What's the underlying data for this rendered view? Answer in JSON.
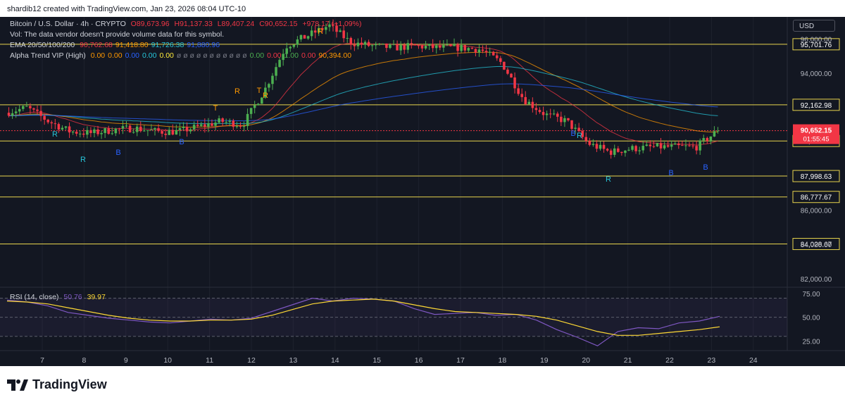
{
  "caption": "shardib12 created with TradingView.com, Jan 23, 2026 08:04 UTC-10",
  "legend": {
    "symbol": "Bitcoin / U.S. Dollar · 4h · CRYPTO",
    "ohlc": {
      "o": "O89,673.96",
      "h": "H91,137.33",
      "l": "L89,407.24",
      "c": "C90,652.15",
      "chg": "+978.17 (+1.09%)"
    },
    "vol": "Vol: The data vendor doesn't provide volume data for this symbol.",
    "ema_label": "EMA 20/50/100/200",
    "ema_values": [
      {
        "text": "90,762.68",
        "color": "#f23645"
      },
      {
        "text": "91,418.80",
        "color": "#ff9800"
      },
      {
        "text": "91,726.38",
        "color": "#26c6da"
      },
      {
        "text": "91,880.96",
        "color": "#2962ff"
      }
    ],
    "alpha_label": "Alpha Trend VIP (High)",
    "alpha_values": [
      {
        "text": "0.00",
        "color": "#ff9800"
      },
      {
        "text": "0.00",
        "color": "#ff9800"
      },
      {
        "text": "0.00",
        "color": "#2962ff"
      },
      {
        "text": "0.00",
        "color": "#26c6da"
      },
      {
        "text": "0.00",
        "color": "#ffeb3b"
      },
      {
        "text": "ø ø ø ø ø ø ø ø ø ø ø",
        "color": "#787b86"
      },
      {
        "text": "0.00",
        "color": "#4caf50"
      },
      {
        "text": "0.00",
        "color": "#f23645"
      },
      {
        "text": "1.00",
        "color": "#4caf50"
      },
      {
        "text": "0.00",
        "color": "#f23645"
      },
      {
        "text": "90,394.00",
        "color": "#ff9800"
      }
    ]
  },
  "currency_button": "USD",
  "rsi_label": "RSI (14, close)",
  "rsi_value": "50.76",
  "rsi_ma_value": "39.97",
  "footer_brand": "TradingView",
  "colors": {
    "up": "#4caf50",
    "down": "#f23645",
    "background": "#131722",
    "level": "#e8d44d",
    "rsi": "#7e57c2",
    "rsi_ma": "#fdd835"
  },
  "chart_data": {
    "type": "candlestick",
    "symbol": "BTCUSD",
    "timeframe": "4h",
    "x_ticks": [
      "7",
      "8",
      "9",
      "10",
      "11",
      "12",
      "13",
      "14",
      "15",
      "16",
      "17",
      "18",
      "19",
      "20",
      "21",
      "22",
      "23",
      "24"
    ],
    "ylim": [
      81500,
      97300
    ],
    "price_ticks": [
      "96,000.00",
      "94,000.00",
      "86,000.00",
      "84,000.00",
      "82,000.00"
    ],
    "levels": [
      {
        "value": 95701.76,
        "label": "95,701.76"
      },
      {
        "value": 92162.98,
        "label": "92,162.98"
      },
      {
        "value": 90049.76,
        "label": "90,049.76"
      },
      {
        "value": 87998.63,
        "label": "87,998.63"
      },
      {
        "value": 86777.67,
        "label": "86,777.67"
      },
      {
        "value": 84028.67,
        "label": "84,028.67"
      }
    ],
    "last_price": {
      "value": 90652.15,
      "label": "90,652.15",
      "countdown": "01:55:45"
    },
    "day_index": [
      7,
      8,
      9,
      10,
      11,
      12,
      13,
      14,
      15,
      16,
      17,
      18,
      19,
      20,
      21,
      22,
      23
    ],
    "close_path": [
      91700,
      92000,
      91200,
      90600,
      90500,
      90700,
      90800,
      90600,
      90600,
      90900,
      91200,
      91000,
      93000,
      95600,
      96200,
      96800,
      95800,
      95600,
      95500,
      95600,
      95500,
      95500,
      95400,
      94600,
      92500,
      91600,
      91200,
      89900,
      89400,
      89600,
      89700,
      89700,
      89700,
      90652
    ],
    "rsi": {
      "ylim": [
        15,
        80
      ],
      "ticks": [
        "75.00",
        "50.00",
        "25.00"
      ],
      "bands": [
        70,
        50,
        30
      ],
      "values": [
        68,
        66,
        62,
        55,
        52,
        49,
        47,
        45,
        44,
        46,
        48,
        47,
        49,
        56,
        63,
        70,
        67,
        70,
        69,
        67,
        59,
        53,
        54,
        55,
        52,
        53,
        47,
        37,
        29,
        20,
        35,
        39,
        38,
        44,
        46,
        51
      ],
      "ma": [
        67,
        66,
        64,
        60,
        56,
        52,
        49,
        47,
        46,
        46,
        47,
        47,
        48,
        52,
        58,
        64,
        67,
        68,
        69,
        67,
        63,
        59,
        56,
        55,
        54,
        53,
        51,
        47,
        41,
        35,
        31,
        31,
        33,
        35,
        37,
        40
      ]
    },
    "annotations": [
      "R",
      "B",
      "T"
    ]
  }
}
